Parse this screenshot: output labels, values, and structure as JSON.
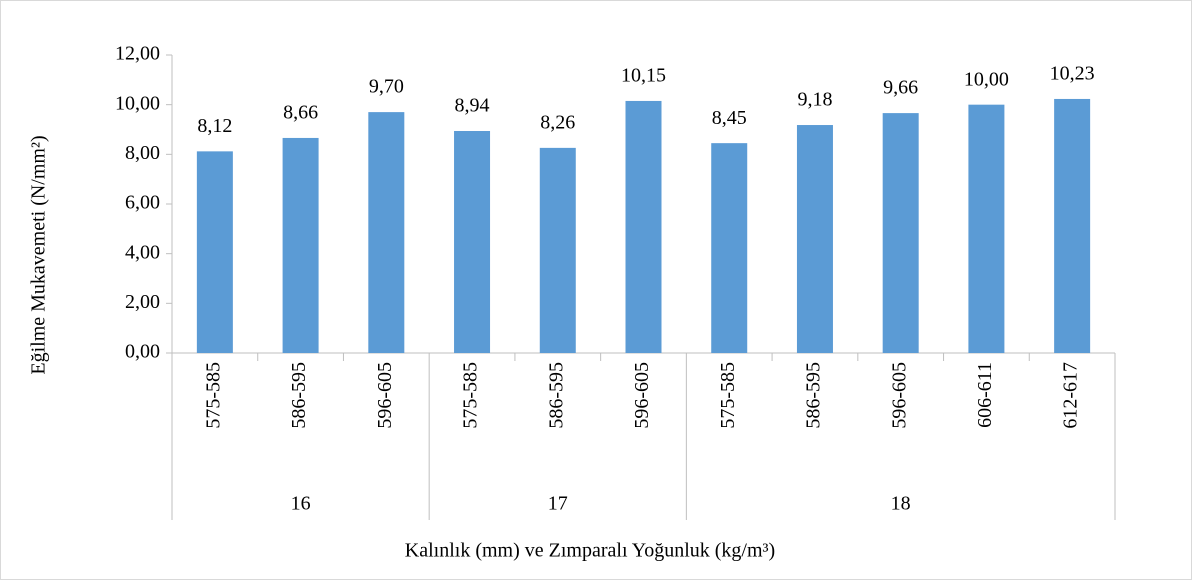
{
  "chart_data": {
    "type": "bar",
    "x_label": "Kalınlık (mm) ve Zımparalı Yoğunluk (kg/m³)",
    "y_label": "Eğilme Mukavemeti (N/mm²)",
    "color": "#5b9bd5",
    "groups": [
      {
        "name": "16",
        "categories": [
          "575-585",
          "586-595",
          "596-605"
        ],
        "values": [
          8.12,
          8.66,
          9.7
        ],
        "value_labels": [
          "8,12",
          "8,66",
          "9,70"
        ]
      },
      {
        "name": "17",
        "categories": [
          "575-585",
          "586-595",
          "596-605"
        ],
        "values": [
          8.94,
          8.26,
          10.15
        ],
        "value_labels": [
          "8,94",
          "8,26",
          "10,15"
        ]
      },
      {
        "name": "18",
        "categories": [
          "575-585",
          "586-595",
          "596-605",
          "606-611",
          "612-617"
        ],
        "values": [
          8.45,
          9.18,
          9.66,
          10.0,
          10.23
        ],
        "value_labels": [
          "8,45",
          "9,18",
          "9,66",
          "10,00",
          "10,23"
        ]
      }
    ],
    "ylim": [
      0,
      12
    ],
    "yticks": [
      {
        "value": 0,
        "label": "0,00"
      },
      {
        "value": 2,
        "label": "2,00"
      },
      {
        "value": 4,
        "label": "4,00"
      },
      {
        "value": 6,
        "label": "6,00"
      },
      {
        "value": 8,
        "label": "8,00"
      },
      {
        "value": 10,
        "label": "10,00"
      },
      {
        "value": 12,
        "label": "12,00"
      }
    ]
  }
}
